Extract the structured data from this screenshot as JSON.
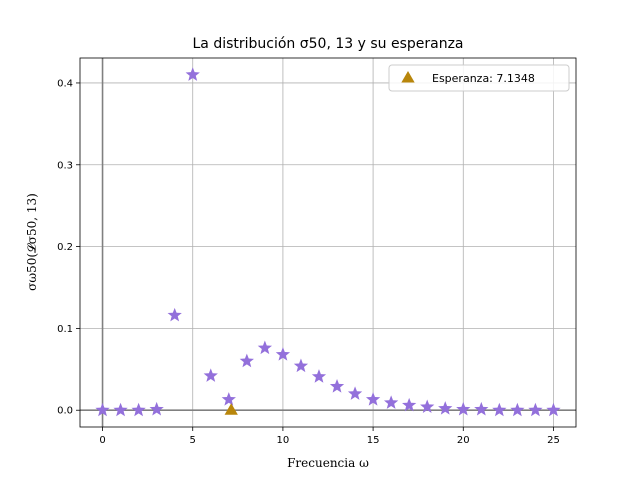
{
  "chart_data": {
    "type": "scatter",
    "title": "La distribución σ50, 13 y su esperanza",
    "xlabel": "Frecuencia ω",
    "ylabel": "σω50(𝓛σ50, 13)",
    "xlim": [
      -1.25,
      26.25
    ],
    "ylim": [
      -0.0205,
      0.4305
    ],
    "xticks": [
      0,
      5,
      10,
      15,
      20,
      25
    ],
    "xtick_labels": [
      "0",
      "5",
      "10",
      "15",
      "20",
      "25"
    ],
    "yticks": [
      0.0,
      0.1,
      0.2,
      0.3,
      0.4
    ],
    "ytick_labels": [
      "0.0",
      "0.1",
      "0.2",
      "0.3",
      "0.4"
    ],
    "grid": true,
    "legend_position": "top-right",
    "series": [
      {
        "marker": "star",
        "color": "#9370db",
        "x": [
          0,
          1,
          2,
          3,
          4,
          5,
          6,
          7,
          8,
          9,
          10,
          11,
          12,
          13,
          14,
          15,
          16,
          17,
          18,
          19,
          20,
          21,
          22,
          23,
          24,
          25
        ],
        "y": [
          0.0,
          0.0,
          0.0,
          0.001,
          0.116,
          0.41,
          0.042,
          0.013,
          0.06,
          0.076,
          0.068,
          0.054,
          0.041,
          0.029,
          0.02,
          0.013,
          0.009,
          0.006,
          0.004,
          0.002,
          0.001,
          0.001,
          0.0,
          0.0,
          0.0,
          0.0
        ]
      },
      {
        "name": "Esperanza: 7.1348",
        "marker": "triangle",
        "color": "#b8860b",
        "x": [
          7.1348
        ],
        "y": [
          0.0
        ]
      }
    ]
  }
}
